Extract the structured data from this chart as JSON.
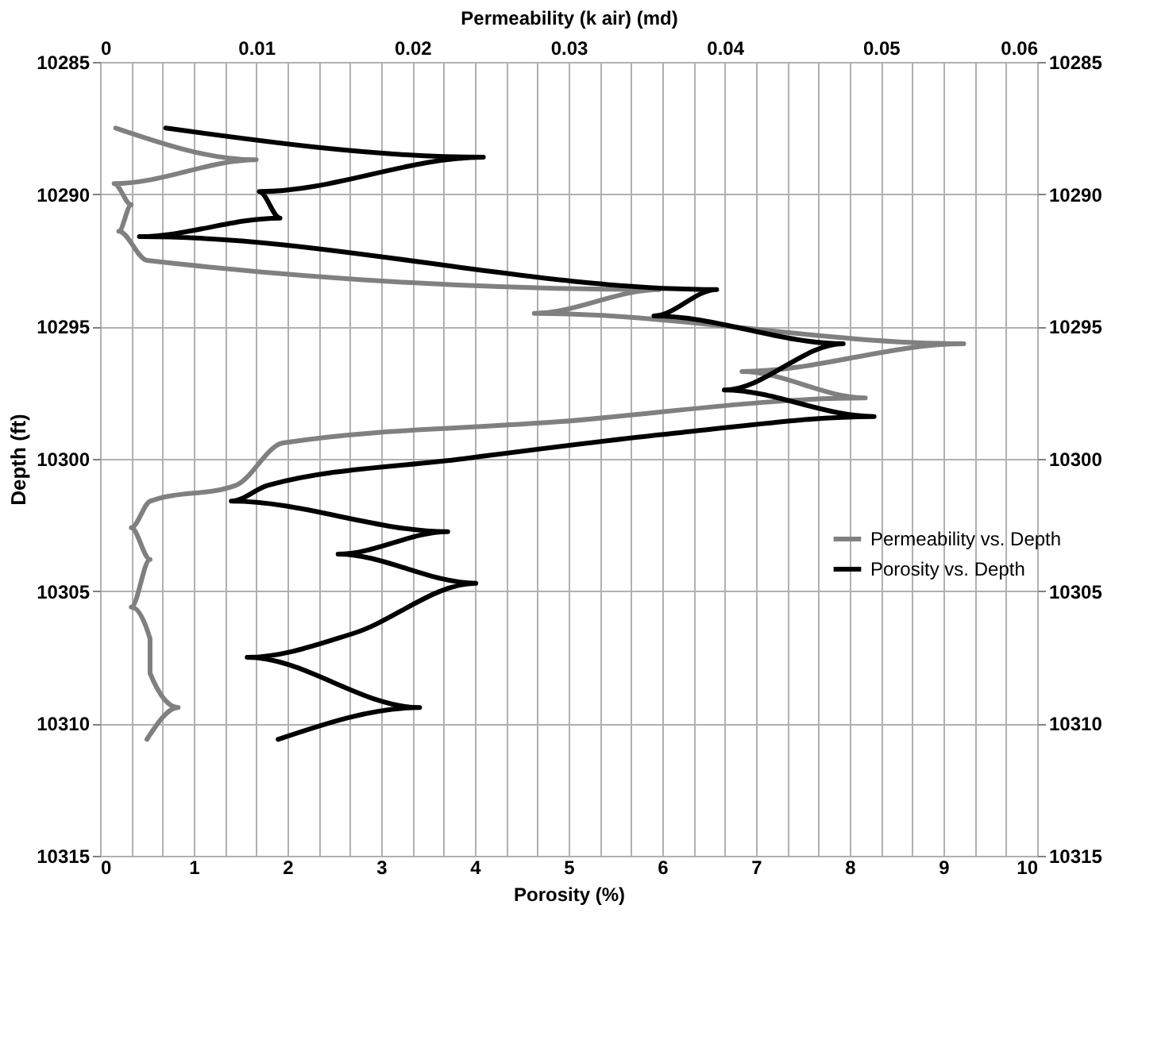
{
  "chart_data": {
    "type": "line",
    "xlabel": "Porosity (%)",
    "x2label": "Permeability (k air) (md)",
    "ylabel": "Depth (ft)",
    "xlim": [
      0,
      10
    ],
    "xticks": [
      0,
      1,
      2,
      3,
      4,
      5,
      6,
      7,
      8,
      9,
      10
    ],
    "x2lim": [
      0,
      0.06
    ],
    "x2ticks": [
      0,
      {
        "value": 0.002,
        "label": null
      },
      {
        "value": 0.004,
        "label": null
      },
      {
        "value": 0.006,
        "label": null
      },
      {
        "value": 0.008,
        "label": null
      },
      0.01,
      {
        "value": 0.012,
        "label": null
      },
      {
        "value": 0.014,
        "label": null
      },
      {
        "value": 0.016,
        "label": null
      },
      {
        "value": 0.018,
        "label": null
      },
      0.02,
      {
        "value": 0.022,
        "label": null
      },
      {
        "value": 0.024,
        "label": null
      },
      {
        "value": 0.026,
        "label": null
      },
      {
        "value": 0.028,
        "label": null
      },
      0.03,
      {
        "value": 0.032,
        "label": null
      },
      {
        "value": 0.034,
        "label": null
      },
      {
        "value": 0.036,
        "label": null
      },
      {
        "value": 0.038,
        "label": null
      },
      0.04,
      {
        "value": 0.042,
        "label": null
      },
      {
        "value": 0.044,
        "label": null
      },
      {
        "value": 0.046,
        "label": null
      },
      {
        "value": 0.048,
        "label": null
      },
      0.05,
      {
        "value": 0.052,
        "label": null
      },
      {
        "value": 0.054,
        "label": null
      },
      {
        "value": 0.056,
        "label": null
      },
      {
        "value": 0.058,
        "label": null
      },
      0.06
    ],
    "ylim": [
      10315,
      10285
    ],
    "yticks": [
      10285,
      10290,
      10295,
      10300,
      10305,
      10310,
      10315
    ],
    "y2lim": [
      10315,
      10285
    ],
    "y2ticks": [
      10285,
      10290,
      10295,
      10300,
      10305,
      10310,
      10315
    ],
    "grid": true,
    "legend": "right",
    "series": [
      {
        "name": "Permeability vs. Depth",
        "color": "#808080",
        "axis": "x2",
        "x": [
          0.001,
          0.01,
          0.0009,
          0.002,
          0.0012,
          0.003,
          0.0358,
          0.0278,
          0.0553,
          0.0411,
          0.049,
          0.0293,
          0.0117,
          0.0087,
          0.0032,
          0.002,
          0.0032,
          0.002,
          0.0032,
          0.0032,
          0.005,
          0.003
        ],
        "values": [
          10287.5,
          10288.7,
          10289.6,
          10290.4,
          10291.4,
          10292.5,
          10293.6,
          10294.5,
          10295.65,
          10296.7,
          10297.7,
          10298.6,
          10299.4,
          10301.0,
          10301.6,
          10302.6,
          10303.8,
          10305.6,
          10306.8,
          10308.1,
          10309.4,
          10310.6
        ]
      },
      {
        "name": "Porosity vs. Depth",
        "color": "#000000",
        "x": [
          0.7,
          4.09,
          1.7,
          1.92,
          0.42,
          6.58,
          5.91,
          7.93,
          6.66,
          8.26,
          6.21,
          3.87,
          1.79,
          1.4,
          3.71,
          2.54,
          4.01,
          2.7,
          1.57,
          3.41,
          1.9
        ],
        "values": [
          10287.5,
          10288.6,
          10289.9,
          10290.9,
          10291.6,
          10293.6,
          10294.6,
          10295.65,
          10297.4,
          10298.4,
          10299.0,
          10300.0,
          10301.0,
          10301.6,
          10302.75,
          10303.6,
          10304.7,
          10306.6,
          10307.5,
          10309.4,
          10310.6
        ]
      }
    ]
  }
}
